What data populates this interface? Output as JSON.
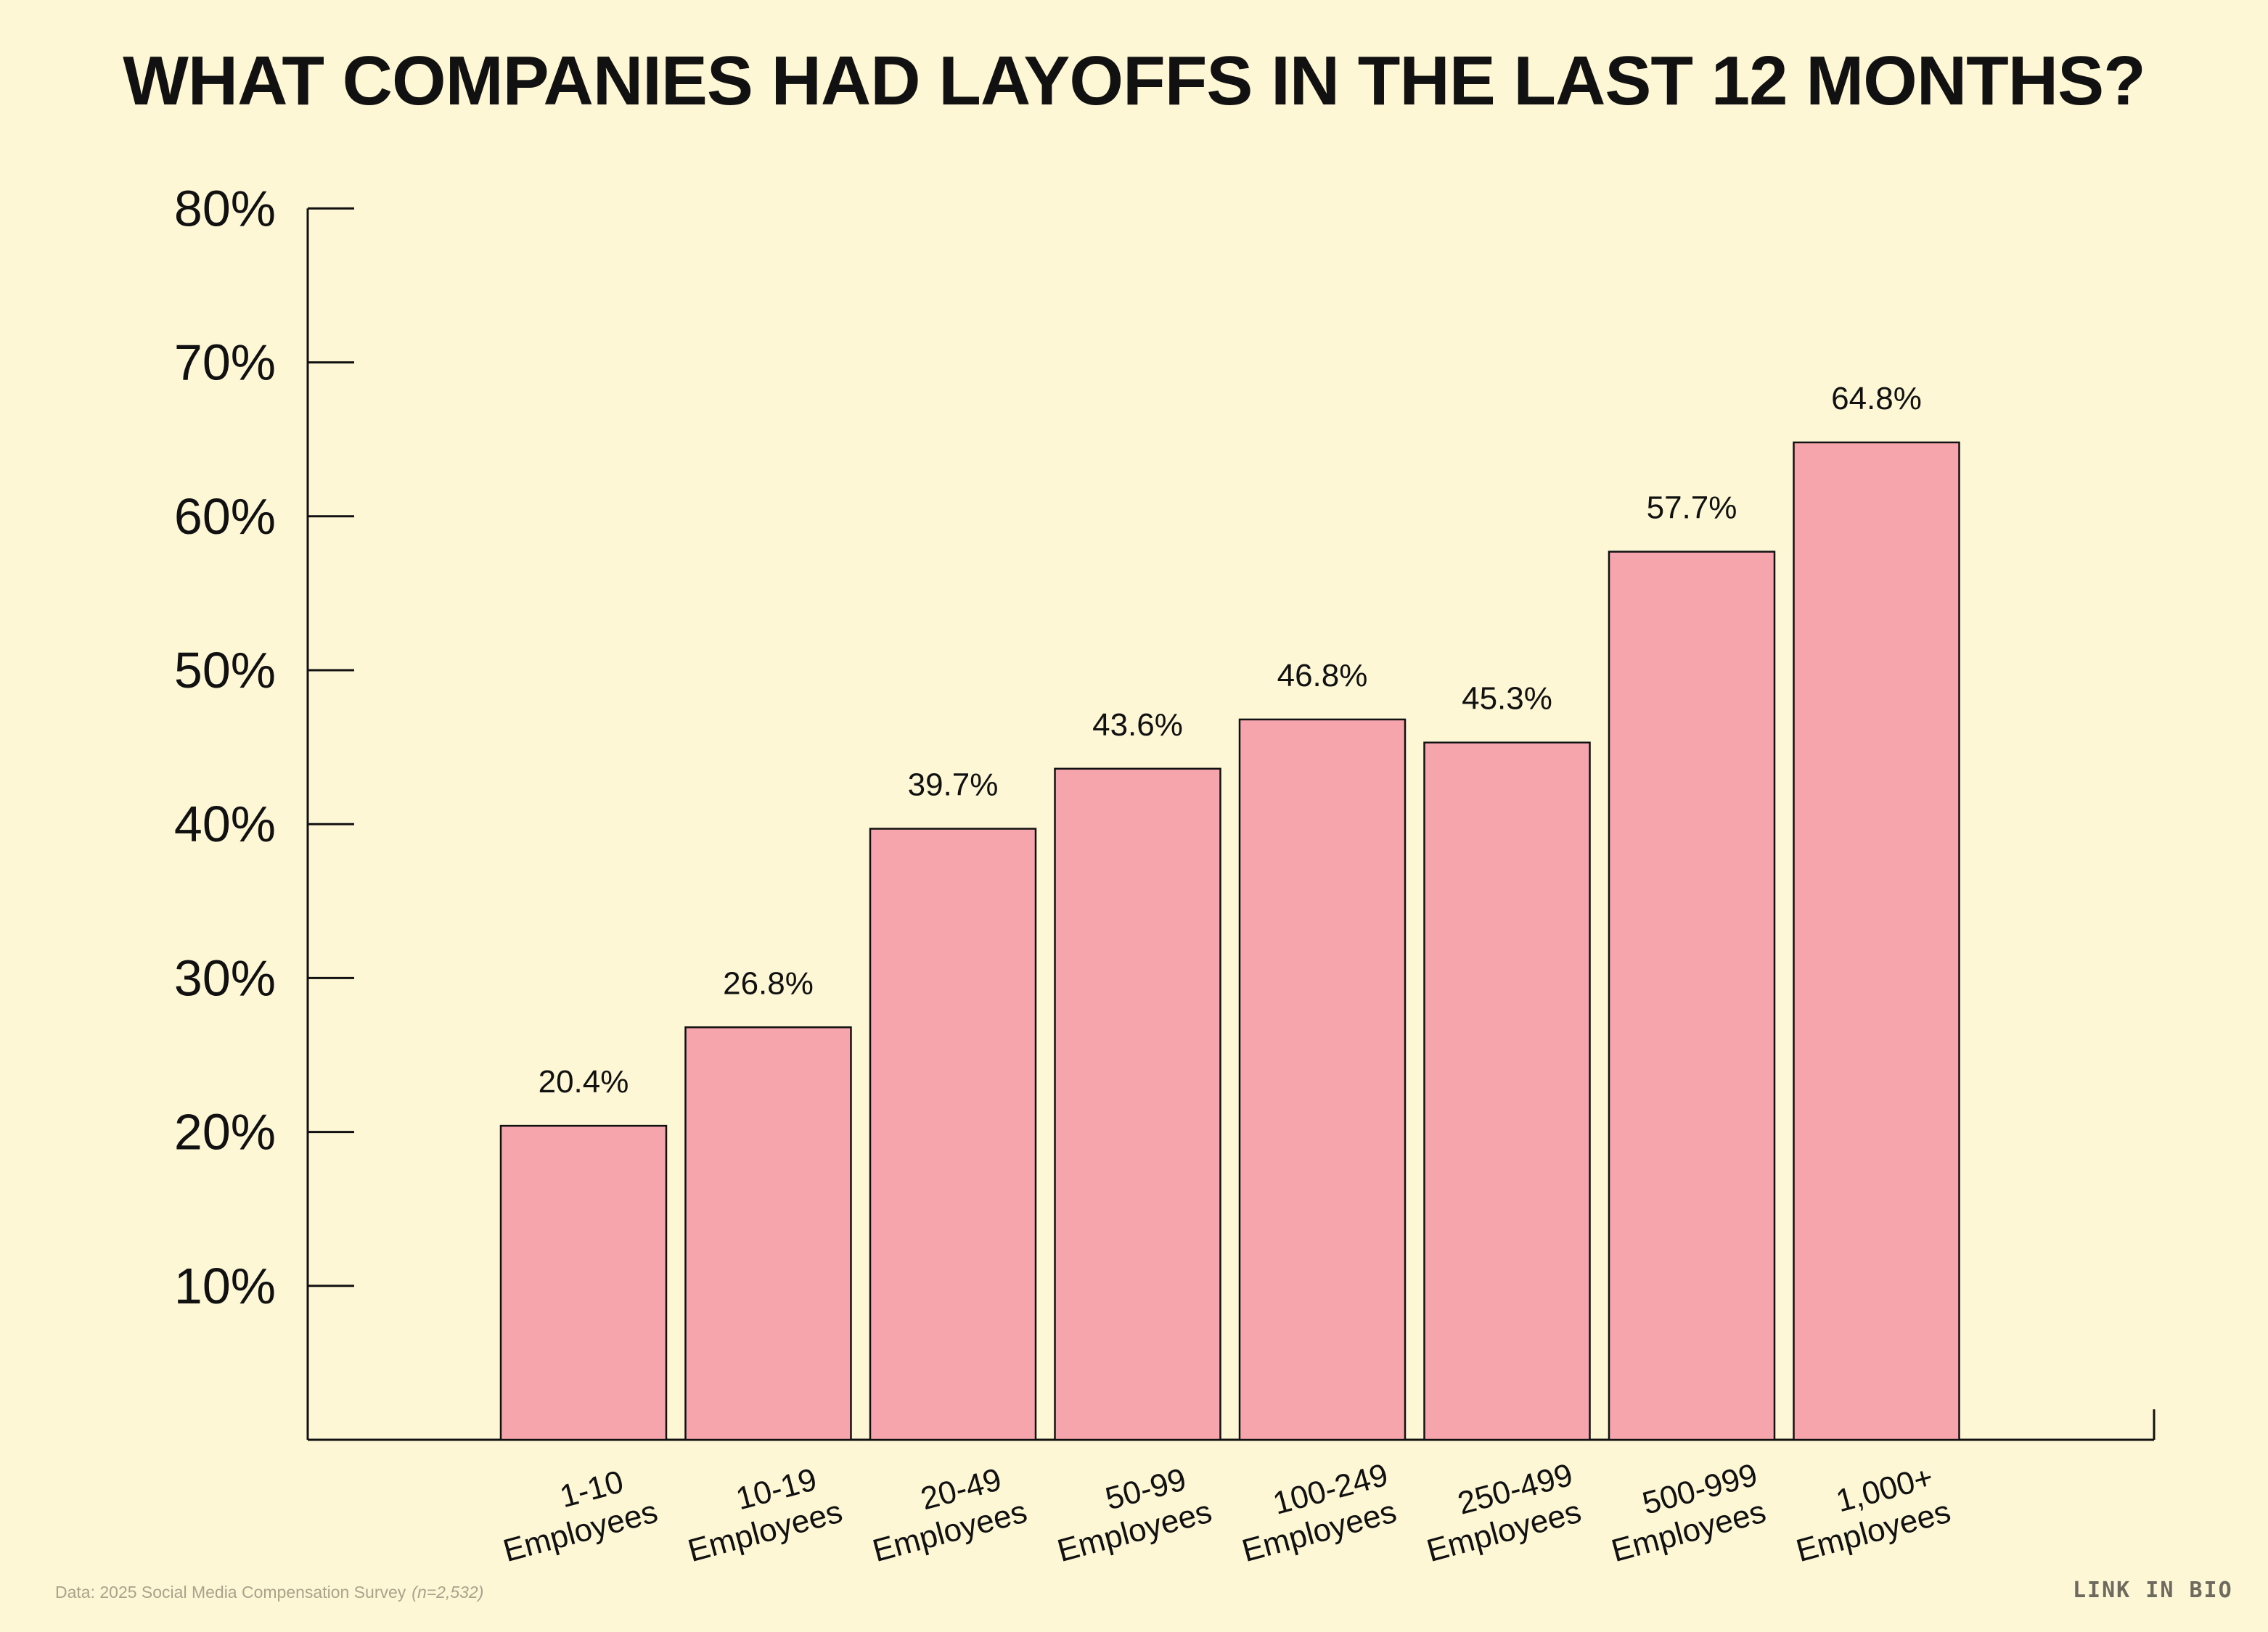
{
  "chart_data": {
    "type": "bar",
    "title": "WHAT COMPANIES HAD LAYOFFS IN THE LAST 12 MONTHS?",
    "categories": [
      [
        "1-10",
        "Employees"
      ],
      [
        "10-19",
        "Employees"
      ],
      [
        "20-49",
        "Employees"
      ],
      [
        "50-99",
        "Employees"
      ],
      [
        "100-249",
        "Employees"
      ],
      [
        "250-499",
        "Employees"
      ],
      [
        "500-999",
        "Employees"
      ],
      [
        "1,000+",
        "Employees"
      ]
    ],
    "values": [
      20.4,
      26.8,
      39.7,
      43.6,
      46.8,
      45.3,
      57.7,
      64.8
    ],
    "value_labels": [
      "20.4%",
      "26.8%",
      "39.7%",
      "43.6%",
      "46.8%",
      "45.3%",
      "57.7%",
      "64.8%"
    ],
    "ylim": [
      0,
      80
    ],
    "yticks": [
      10,
      20,
      30,
      40,
      50,
      60,
      70,
      80
    ],
    "ytick_labels": [
      "10%",
      "20%",
      "30%",
      "40%",
      "50%",
      "60%",
      "70%",
      "80%"
    ],
    "xlabel": "",
    "ylabel": "",
    "grid": false,
    "bar_color": "#f6a5ad",
    "bar_edge_color": "#111111",
    "background": "#fdf7d6"
  },
  "footer": {
    "source": "Data: 2025 Social Media Compensation Survey",
    "sample": "(n=2,532)",
    "brand": "LINK IN BIO"
  }
}
